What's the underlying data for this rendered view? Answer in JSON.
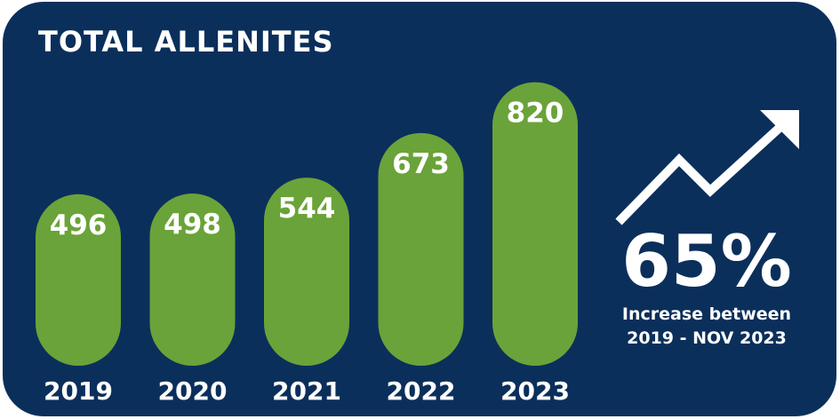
{
  "colors": {
    "background": "#0b2f5b",
    "bar": "#6aa339",
    "text": "#ffffff"
  },
  "chart_data": {
    "type": "bar",
    "title": "TOTAL ALLENITES",
    "categories": [
      "2019",
      "2020",
      "2021",
      "2022",
      "2023"
    ],
    "values": [
      496,
      498,
      544,
      673,
      820
    ],
    "ylim": [
      0,
      820
    ],
    "grid": false,
    "bar_shape": "rounded-capsule",
    "value_labels_inside_bars": true
  },
  "callout": {
    "icon": "trend-up-arrow-icon",
    "percent": "65%",
    "caption_line1": "Increase between",
    "caption_line2": "2019 - NOV  2023"
  }
}
